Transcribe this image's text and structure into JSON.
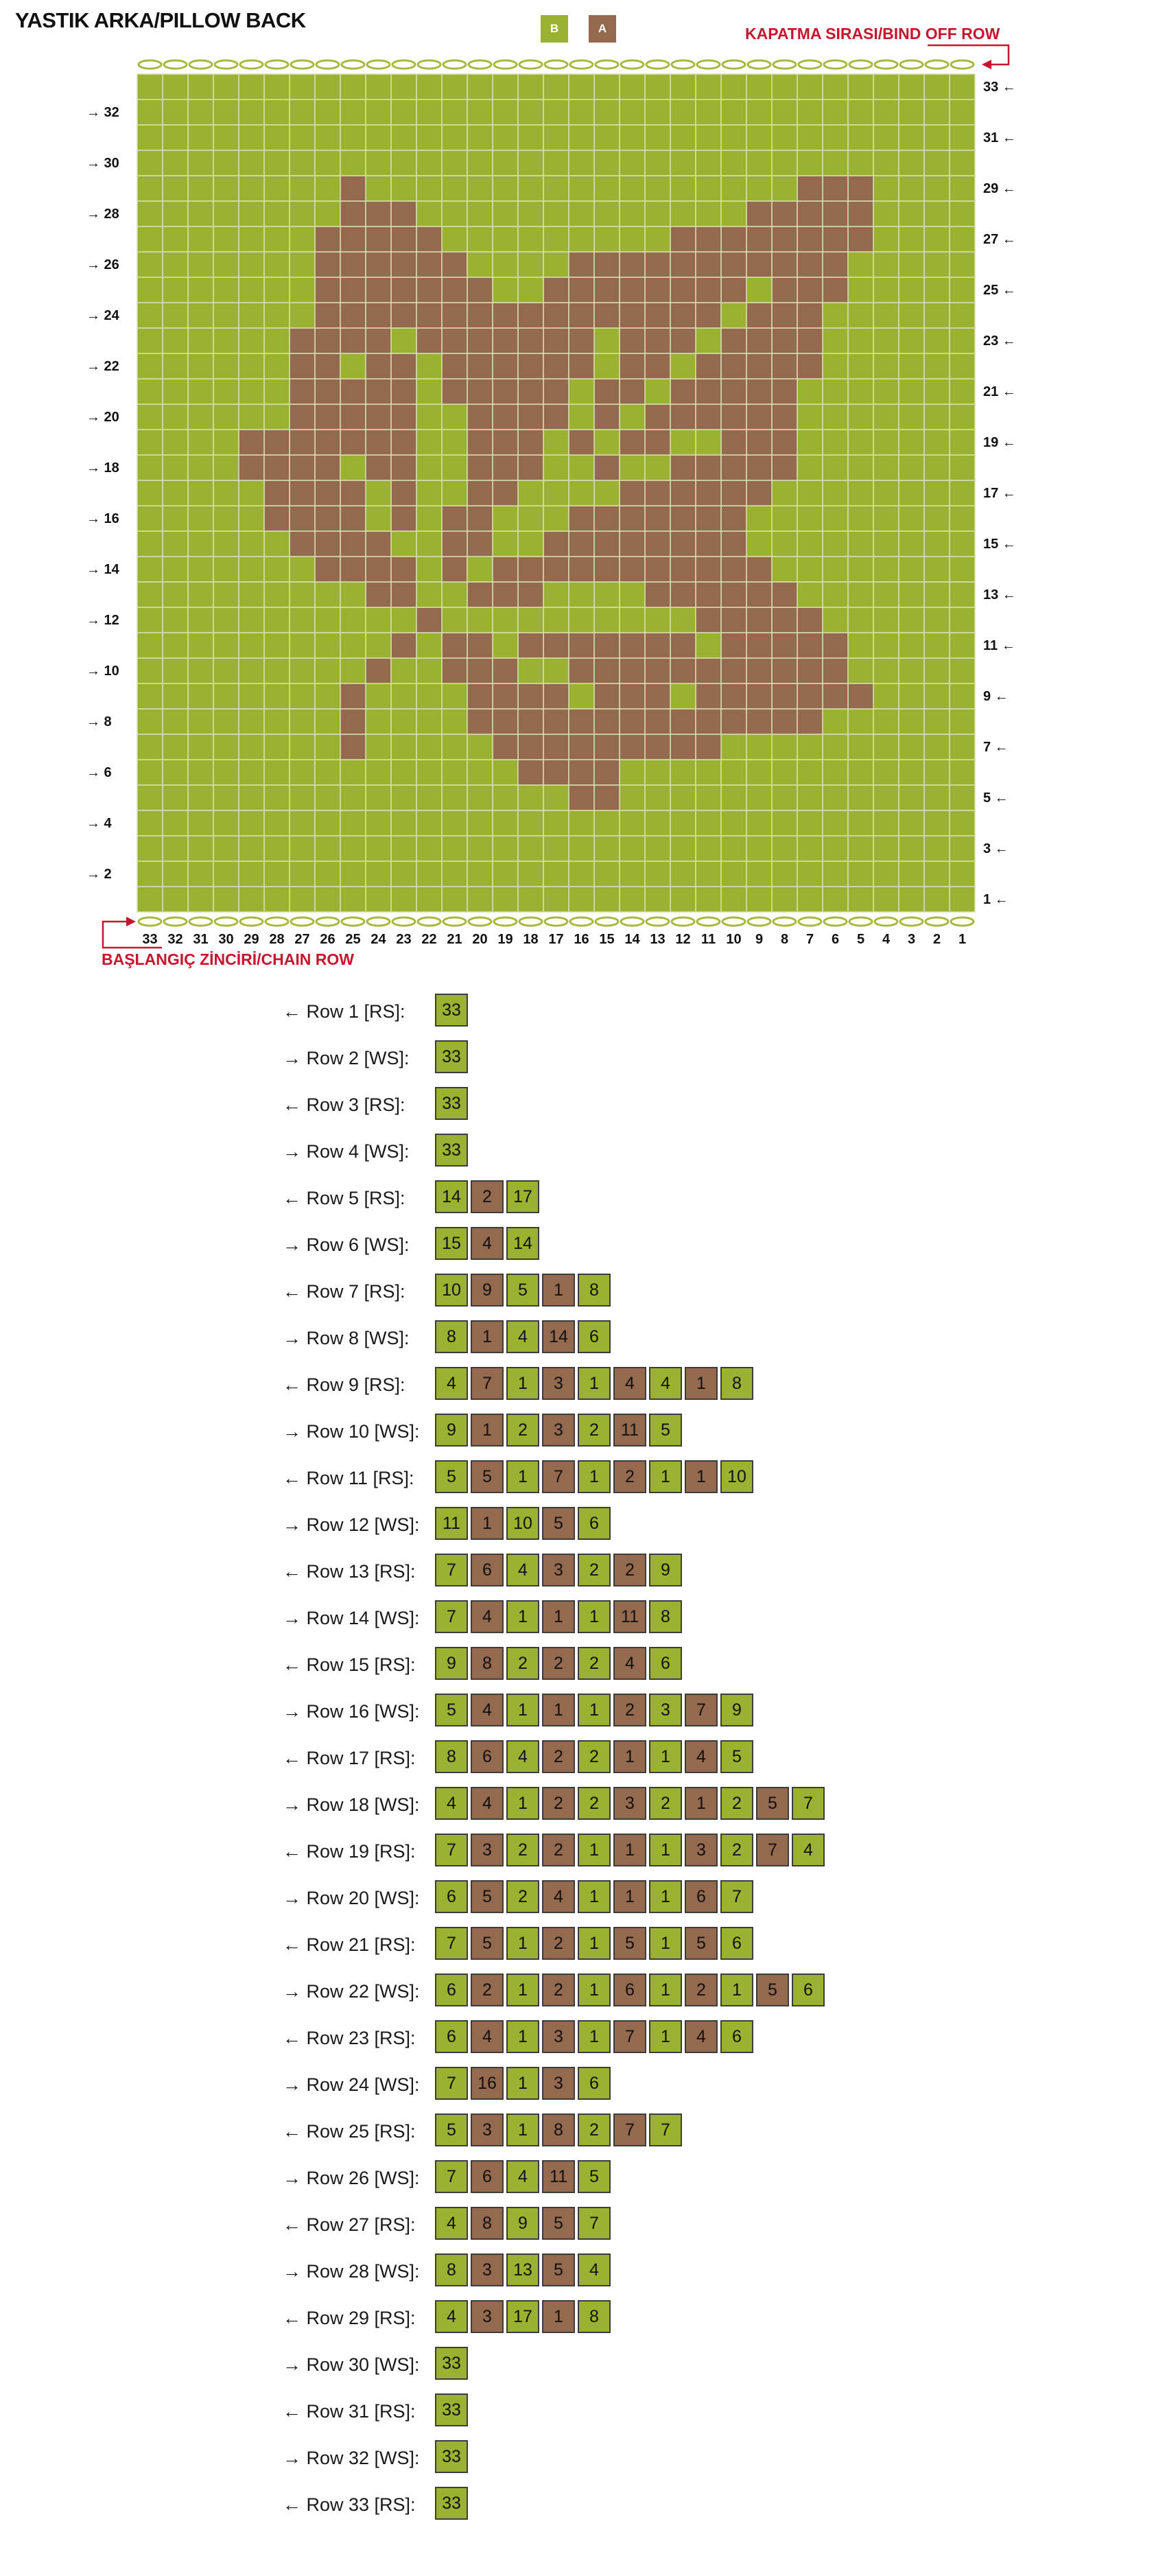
{
  "header": {
    "title": "YASTIK ARKA/PILLOW BACK",
    "bind_off_label": "KAPATMA SIRASI/BIND OFF ROW",
    "chain_label": "BAŞLANGIÇ ZİNCİRİ/CHAIN ROW"
  },
  "legend": [
    {
      "label": "B",
      "color": "#9bb231"
    },
    {
      "label": "A",
      "color": "#94694e"
    }
  ],
  "colors": {
    "B": "#9bb231",
    "A": "#94694e",
    "accent_red": "#c8142c",
    "gridline": "#d6dfb0"
  },
  "chart_data": {
    "type": "knitting-chart",
    "columns": 33,
    "rows_count": 33,
    "column_labels": [
      "33",
      "32",
      "31",
      "30",
      "29",
      "28",
      "27",
      "26",
      "25",
      "24",
      "23",
      "22",
      "21",
      "20",
      "19",
      "18",
      "17",
      "16",
      "15",
      "14",
      "13",
      "12",
      "11",
      "10",
      "9",
      "8",
      "7",
      "6",
      "5",
      "4",
      "3",
      "2",
      "1"
    ],
    "right_row_labels": [
      "33 ←",
      "31 ←",
      "29 ←",
      "27 ←",
      "25 ←",
      "23 ←",
      "21 ←",
      "19 ←",
      "17 ←",
      "15 ←",
      "13 ←",
      "11 ←",
      "9 ←",
      "7 ←",
      "5 ←",
      "3 ←",
      "1 ←"
    ],
    "left_row_labels": [
      "→ 32",
      "→ 30",
      "→ 28",
      "→ 26",
      "→ 24",
      "→ 22",
      "→ 20",
      "→ 18",
      "→ 16",
      "→ 14",
      "→ 12",
      "→ 10",
      "→ 8",
      "→ 6",
      "→ 4",
      "→ 2"
    ],
    "rows": [
      {
        "label": "← Row 1 [RS]:",
        "dir": "RS",
        "segments": [
          {
            "c": "B",
            "n": 33
          }
        ]
      },
      {
        "label": "→ Row 2 [WS]:",
        "dir": "WS",
        "segments": [
          {
            "c": "B",
            "n": 33
          }
        ]
      },
      {
        "label": "← Row 3 [RS]:",
        "dir": "RS",
        "segments": [
          {
            "c": "B",
            "n": 33
          }
        ]
      },
      {
        "label": "→ Row 4 [WS]:",
        "dir": "WS",
        "segments": [
          {
            "c": "B",
            "n": 33
          }
        ]
      },
      {
        "label": "← Row 5 [RS]:",
        "dir": "RS",
        "segments": [
          {
            "c": "B",
            "n": 14
          },
          {
            "c": "A",
            "n": 2
          },
          {
            "c": "B",
            "n": 17
          }
        ]
      },
      {
        "label": "→ Row 6 [WS]:",
        "dir": "WS",
        "segments": [
          {
            "c": "B",
            "n": 15
          },
          {
            "c": "A",
            "n": 4
          },
          {
            "c": "B",
            "n": 14
          }
        ]
      },
      {
        "label": "← Row 7 [RS]:",
        "dir": "RS",
        "segments": [
          {
            "c": "B",
            "n": 10
          },
          {
            "c": "A",
            "n": 9
          },
          {
            "c": "B",
            "n": 5
          },
          {
            "c": "A",
            "n": 1
          },
          {
            "c": "B",
            "n": 8
          }
        ]
      },
      {
        "label": "→ Row 8 [WS]:",
        "dir": "WS",
        "segments": [
          {
            "c": "B",
            "n": 8
          },
          {
            "c": "A",
            "n": 1
          },
          {
            "c": "B",
            "n": 4
          },
          {
            "c": "A",
            "n": 14
          },
          {
            "c": "B",
            "n": 6
          }
        ]
      },
      {
        "label": "← Row 9 [RS]:",
        "dir": "RS",
        "segments": [
          {
            "c": "B",
            "n": 4
          },
          {
            "c": "A",
            "n": 7
          },
          {
            "c": "B",
            "n": 1
          },
          {
            "c": "A",
            "n": 3
          },
          {
            "c": "B",
            "n": 1
          },
          {
            "c": "A",
            "n": 4
          },
          {
            "c": "B",
            "n": 4
          },
          {
            "c": "A",
            "n": 1
          },
          {
            "c": "B",
            "n": 8
          }
        ]
      },
      {
        "label": "→ Row 10 [WS]:",
        "dir": "WS",
        "segments": [
          {
            "c": "B",
            "n": 9
          },
          {
            "c": "A",
            "n": 1
          },
          {
            "c": "B",
            "n": 2
          },
          {
            "c": "A",
            "n": 3
          },
          {
            "c": "B",
            "n": 2
          },
          {
            "c": "A",
            "n": 11
          },
          {
            "c": "B",
            "n": 5
          }
        ]
      },
      {
        "label": "← Row 11 [RS]:",
        "dir": "RS",
        "segments": [
          {
            "c": "B",
            "n": 5
          },
          {
            "c": "A",
            "n": 5
          },
          {
            "c": "B",
            "n": 1
          },
          {
            "c": "A",
            "n": 7
          },
          {
            "c": "B",
            "n": 1
          },
          {
            "c": "A",
            "n": 2
          },
          {
            "c": "B",
            "n": 1
          },
          {
            "c": "A",
            "n": 1
          },
          {
            "c": "B",
            "n": 10
          }
        ]
      },
      {
        "label": "→ Row 12 [WS]:",
        "dir": "WS",
        "segments": [
          {
            "c": "B",
            "n": 11
          },
          {
            "c": "A",
            "n": 1
          },
          {
            "c": "B",
            "n": 10
          },
          {
            "c": "A",
            "n": 5
          },
          {
            "c": "B",
            "n": 6
          }
        ]
      },
      {
        "label": "← Row 13 [RS]:",
        "dir": "RS",
        "segments": [
          {
            "c": "B",
            "n": 7
          },
          {
            "c": "A",
            "n": 6
          },
          {
            "c": "B",
            "n": 4
          },
          {
            "c": "A",
            "n": 3
          },
          {
            "c": "B",
            "n": 2
          },
          {
            "c": "A",
            "n": 2
          },
          {
            "c": "B",
            "n": 9
          }
        ]
      },
      {
        "label": "→ Row 14 [WS]:",
        "dir": "WS",
        "segments": [
          {
            "c": "B",
            "n": 7
          },
          {
            "c": "A",
            "n": 4
          },
          {
            "c": "B",
            "n": 1
          },
          {
            "c": "A",
            "n": 1
          },
          {
            "c": "B",
            "n": 1
          },
          {
            "c": "A",
            "n": 11
          },
          {
            "c": "B",
            "n": 8
          }
        ]
      },
      {
        "label": "← Row 15 [RS]:",
        "dir": "RS",
        "segments": [
          {
            "c": "B",
            "n": 9
          },
          {
            "c": "A",
            "n": 8
          },
          {
            "c": "B",
            "n": 2
          },
          {
            "c": "A",
            "n": 2
          },
          {
            "c": "B",
            "n": 2
          },
          {
            "c": "A",
            "n": 4
          },
          {
            "c": "B",
            "n": 6
          }
        ]
      },
      {
        "label": "→ Row 16 [WS]:",
        "dir": "WS",
        "segments": [
          {
            "c": "B",
            "n": 5
          },
          {
            "c": "A",
            "n": 4
          },
          {
            "c": "B",
            "n": 1
          },
          {
            "c": "A",
            "n": 1
          },
          {
            "c": "B",
            "n": 1
          },
          {
            "c": "A",
            "n": 2
          },
          {
            "c": "B",
            "n": 3
          },
          {
            "c": "A",
            "n": 7
          },
          {
            "c": "B",
            "n": 9
          }
        ]
      },
      {
        "label": "← Row 17 [RS]:",
        "dir": "RS",
        "segments": [
          {
            "c": "B",
            "n": 8
          },
          {
            "c": "A",
            "n": 6
          },
          {
            "c": "B",
            "n": 4
          },
          {
            "c": "A",
            "n": 2
          },
          {
            "c": "B",
            "n": 2
          },
          {
            "c": "A",
            "n": 1
          },
          {
            "c": "B",
            "n": 1
          },
          {
            "c": "A",
            "n": 4
          },
          {
            "c": "B",
            "n": 5
          }
        ]
      },
      {
        "label": "→ Row 18 [WS]:",
        "dir": "WS",
        "segments": [
          {
            "c": "B",
            "n": 4
          },
          {
            "c": "A",
            "n": 4
          },
          {
            "c": "B",
            "n": 1
          },
          {
            "c": "A",
            "n": 2
          },
          {
            "c": "B",
            "n": 2
          },
          {
            "c": "A",
            "n": 3
          },
          {
            "c": "B",
            "n": 2
          },
          {
            "c": "A",
            "n": 1
          },
          {
            "c": "B",
            "n": 2
          },
          {
            "c": "A",
            "n": 5
          },
          {
            "c": "B",
            "n": 7
          }
        ]
      },
      {
        "label": "← Row 19 [RS]:",
        "dir": "RS",
        "segments": [
          {
            "c": "B",
            "n": 7
          },
          {
            "c": "A",
            "n": 3
          },
          {
            "c": "B",
            "n": 2
          },
          {
            "c": "A",
            "n": 2
          },
          {
            "c": "B",
            "n": 1
          },
          {
            "c": "A",
            "n": 1
          },
          {
            "c": "B",
            "n": 1
          },
          {
            "c": "A",
            "n": 3
          },
          {
            "c": "B",
            "n": 2
          },
          {
            "c": "A",
            "n": 7
          },
          {
            "c": "B",
            "n": 4
          }
        ]
      },
      {
        "label": "→ Row 20 [WS]:",
        "dir": "WS",
        "segments": [
          {
            "c": "B",
            "n": 6
          },
          {
            "c": "A",
            "n": 5
          },
          {
            "c": "B",
            "n": 2
          },
          {
            "c": "A",
            "n": 4
          },
          {
            "c": "B",
            "n": 1
          },
          {
            "c": "A",
            "n": 1
          },
          {
            "c": "B",
            "n": 1
          },
          {
            "c": "A",
            "n": 6
          },
          {
            "c": "B",
            "n": 7
          }
        ]
      },
      {
        "label": "← Row 21 [RS]:",
        "dir": "RS",
        "segments": [
          {
            "c": "B",
            "n": 7
          },
          {
            "c": "A",
            "n": 5
          },
          {
            "c": "B",
            "n": 1
          },
          {
            "c": "A",
            "n": 2
          },
          {
            "c": "B",
            "n": 1
          },
          {
            "c": "A",
            "n": 5
          },
          {
            "c": "B",
            "n": 1
          },
          {
            "c": "A",
            "n": 5
          },
          {
            "c": "B",
            "n": 6
          }
        ]
      },
      {
        "label": "→ Row 22 [WS]:",
        "dir": "WS",
        "segments": [
          {
            "c": "B",
            "n": 6
          },
          {
            "c": "A",
            "n": 2
          },
          {
            "c": "B",
            "n": 1
          },
          {
            "c": "A",
            "n": 2
          },
          {
            "c": "B",
            "n": 1
          },
          {
            "c": "A",
            "n": 6
          },
          {
            "c": "B",
            "n": 1
          },
          {
            "c": "A",
            "n": 2
          },
          {
            "c": "B",
            "n": 1
          },
          {
            "c": "A",
            "n": 5
          },
          {
            "c": "B",
            "n": 6
          }
        ]
      },
      {
        "label": "← Row 23 [RS]:",
        "dir": "RS",
        "segments": [
          {
            "c": "B",
            "n": 6
          },
          {
            "c": "A",
            "n": 4
          },
          {
            "c": "B",
            "n": 1
          },
          {
            "c": "A",
            "n": 3
          },
          {
            "c": "B",
            "n": 1
          },
          {
            "c": "A",
            "n": 7
          },
          {
            "c": "B",
            "n": 1
          },
          {
            "c": "A",
            "n": 4
          },
          {
            "c": "B",
            "n": 6
          }
        ]
      },
      {
        "label": "→ Row 24 [WS]:",
        "dir": "WS",
        "segments": [
          {
            "c": "B",
            "n": 7
          },
          {
            "c": "A",
            "n": 16
          },
          {
            "c": "B",
            "n": 1
          },
          {
            "c": "A",
            "n": 3
          },
          {
            "c": "B",
            "n": 6
          }
        ]
      },
      {
        "label": "← Row 25 [RS]:",
        "dir": "RS",
        "segments": [
          {
            "c": "B",
            "n": 5
          },
          {
            "c": "A",
            "n": 3
          },
          {
            "c": "B",
            "n": 1
          },
          {
            "c": "A",
            "n": 8
          },
          {
            "c": "B",
            "n": 2
          },
          {
            "c": "A",
            "n": 7
          },
          {
            "c": "B",
            "n": 7
          }
        ]
      },
      {
        "label": "→ Row 26 [WS]:",
        "dir": "WS",
        "segments": [
          {
            "c": "B",
            "n": 7
          },
          {
            "c": "A",
            "n": 6
          },
          {
            "c": "B",
            "n": 4
          },
          {
            "c": "A",
            "n": 11
          },
          {
            "c": "B",
            "n": 5
          }
        ]
      },
      {
        "label": "← Row 27 [RS]:",
        "dir": "RS",
        "segments": [
          {
            "c": "B",
            "n": 4
          },
          {
            "c": "A",
            "n": 8
          },
          {
            "c": "B",
            "n": 9
          },
          {
            "c": "A",
            "n": 5
          },
          {
            "c": "B",
            "n": 7
          }
        ]
      },
      {
        "label": "→ Row 28 [WS]:",
        "dir": "WS",
        "segments": [
          {
            "c": "B",
            "n": 8
          },
          {
            "c": "A",
            "n": 3
          },
          {
            "c": "B",
            "n": 13
          },
          {
            "c": "A",
            "n": 5
          },
          {
            "c": "B",
            "n": 4
          }
        ]
      },
      {
        "label": "← Row 29 [RS]:",
        "dir": "RS",
        "segments": [
          {
            "c": "B",
            "n": 4
          },
          {
            "c": "A",
            "n": 3
          },
          {
            "c": "B",
            "n": 17
          },
          {
            "c": "A",
            "n": 1
          },
          {
            "c": "B",
            "n": 8
          }
        ]
      },
      {
        "label": "→ Row 30 [WS]:",
        "dir": "WS",
        "segments": [
          {
            "c": "B",
            "n": 33
          }
        ]
      },
      {
        "label": "← Row 31 [RS]:",
        "dir": "RS",
        "segments": [
          {
            "c": "B",
            "n": 33
          }
        ]
      },
      {
        "label": "→ Row 32 [WS]:",
        "dir": "WS",
        "segments": [
          {
            "c": "B",
            "n": 33
          }
        ]
      },
      {
        "label": "← Row 33 [RS]:",
        "dir": "RS",
        "segments": [
          {
            "c": "B",
            "n": 33
          }
        ]
      }
    ]
  }
}
